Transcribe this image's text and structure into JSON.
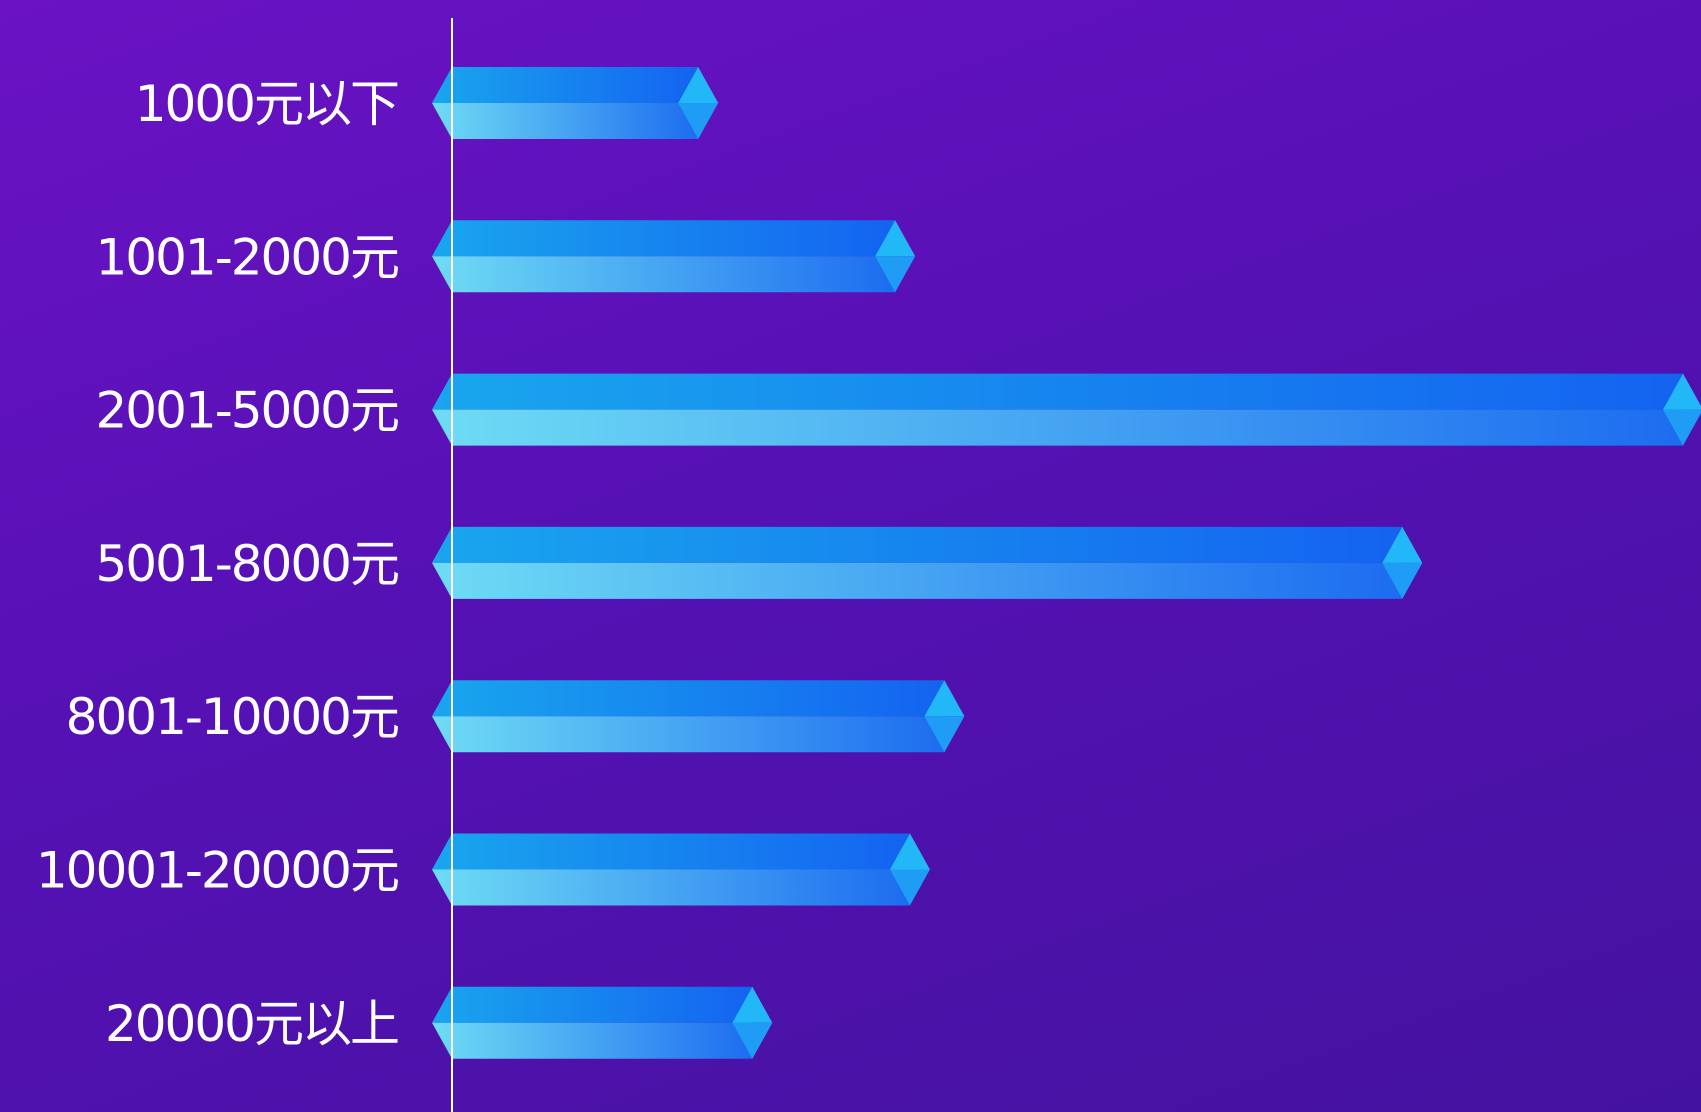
{
  "colors": {
    "background_top": "#6a12c4",
    "background_bottom": "#4412a0",
    "bar_top_start": "#19a6ee",
    "bar_top_end": "#1463f0",
    "bar_bottom_start": "#6fdcf4",
    "bar_bottom_end": "#1d6cf0",
    "bar_cap": "#22b8f8",
    "axis_line": "#ffffff",
    "label_text": "#ffffff"
  },
  "chart_data": {
    "type": "bar",
    "orientation": "horizontal",
    "categories": [
      "1000元以下",
      "1001-2000元",
      "2001-5000元",
      "5001-8000元",
      "8001-10000元",
      "10001-20000元",
      "20000元以上"
    ],
    "values": [
      5,
      9,
      25,
      19.3,
      10,
      9.3,
      6.1
    ],
    "xlim": [
      0,
      25
    ],
    "title": "",
    "xlabel": "",
    "ylabel": "",
    "grid": false,
    "legend": "none"
  }
}
